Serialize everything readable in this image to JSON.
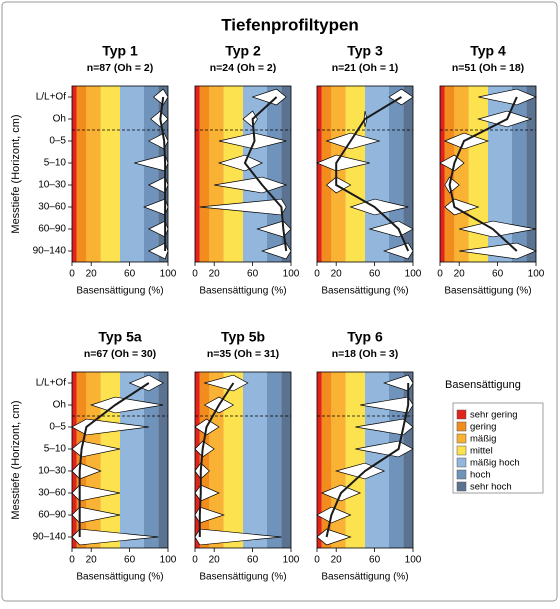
{
  "figure": {
    "title": "Tiefenprofiltypen"
  },
  "legend": {
    "title": "Basensättigung",
    "edges": [
      0,
      5,
      15,
      30,
      50,
      75,
      90,
      100
    ],
    "entries": [
      {
        "label": "sehr gering",
        "color": "#e2231a"
      },
      {
        "label": "gering",
        "color": "#f28c1c"
      },
      {
        "label": "mäßig",
        "color": "#f9b233"
      },
      {
        "label": "mittel",
        "color": "#fde24f"
      },
      {
        "label": "mäßig hoch",
        "color": "#93b7dc"
      },
      {
        "label": "hoch",
        "color": "#6f93bb"
      },
      {
        "label": "sehr hoch",
        "color": "#5b7390"
      }
    ]
  },
  "chart_data": [
    {
      "type": "violin",
      "title": "Typ 1",
      "subtitle": "n=87 (Oh = 2)",
      "ylabel": "Messtiefe (Horizont, cm)",
      "categories": [
        "L/L+Of",
        "Oh",
        "0–5",
        "5–10",
        "10–30",
        "30–60",
        "60–90",
        "90–140"
      ],
      "values": [
        95,
        92,
        96,
        97,
        97,
        97,
        97,
        97
      ],
      "ranges": [
        [
          85,
          100
        ],
        [
          82,
          100
        ],
        [
          80,
          100
        ],
        [
          65,
          100
        ],
        [
          80,
          100
        ],
        [
          75,
          100
        ],
        [
          80,
          100
        ],
        [
          80,
          100
        ]
      ],
      "xlim": [
        0,
        100
      ],
      "xticks": [
        0,
        20,
        60,
        100
      ],
      "xlabel": "Basensättigung (%)"
    },
    {
      "type": "violin",
      "title": "Typ 2",
      "subtitle": "n=24 (Oh = 2)",
      "values": [
        85,
        60,
        62,
        52,
        70,
        90,
        92,
        95
      ],
      "ranges": [
        [
          60,
          95
        ],
        [
          50,
          65
        ],
        [
          25,
          95
        ],
        [
          25,
          70
        ],
        [
          20,
          95
        ],
        [
          5,
          95
        ],
        [
          65,
          100
        ],
        [
          70,
          100
        ]
      ],
      "xlim": [
        0,
        100
      ],
      "xticks": [
        0,
        20,
        60,
        100
      ],
      "xlabel": "Basensättigung (%)"
    },
    {
      "type": "violin",
      "title": "Typ 3",
      "subtitle": "n=21 (Oh = 1)",
      "values": [
        88,
        50,
        35,
        20,
        20,
        60,
        85,
        95
      ],
      "ranges": [
        [
          75,
          100
        ],
        [
          49,
          52
        ],
        [
          10,
          65
        ],
        [
          0,
          55
        ],
        [
          10,
          35
        ],
        [
          35,
          95
        ],
        [
          55,
          100
        ],
        [
          70,
          100
        ]
      ],
      "xlim": [
        0,
        100
      ],
      "xticks": [
        0,
        20,
        60,
        100
      ],
      "xlabel": "Basensättigung (%)"
    },
    {
      "type": "violin",
      "title": "Typ 4",
      "subtitle": "n=51 (Oh = 18)",
      "values": [
        80,
        70,
        25,
        15,
        10,
        15,
        55,
        80
      ],
      "ranges": [
        [
          40,
          100
        ],
        [
          40,
          95
        ],
        [
          5,
          50
        ],
        [
          0,
          25
        ],
        [
          5,
          20
        ],
        [
          5,
          40
        ],
        [
          20,
          100
        ],
        [
          20,
          100
        ]
      ],
      "xlim": [
        0,
        100
      ],
      "xticks": [
        0,
        20,
        60,
        100
      ],
      "xlabel": "Basensättigung (%)"
    },
    {
      "type": "violin",
      "title": "Typ 5a",
      "subtitle": "n=67 (Oh = 30)",
      "ylabel": "Messtiefe (Horizont, cm)",
      "categories": [
        "L/L+Of",
        "Oh",
        "0–5",
        "5–10",
        "10–30",
        "30–60",
        "60–90",
        "90–140"
      ],
      "values": [
        80,
        45,
        15,
        10,
        8,
        8,
        8,
        8
      ],
      "ranges": [
        [
          60,
          95
        ],
        [
          20,
          95
        ],
        [
          0,
          80
        ],
        [
          0,
          50
        ],
        [
          0,
          30
        ],
        [
          0,
          50
        ],
        [
          0,
          50
        ],
        [
          0,
          90
        ]
      ],
      "xlim": [
        0,
        100
      ],
      "xticks": [
        0,
        20,
        60,
        100
      ],
      "xlabel": "Basensättigung (%)"
    },
    {
      "type": "violin",
      "title": "Typ 5b",
      "subtitle": "n=35 (Oh = 31)",
      "values": [
        40,
        25,
        12,
        8,
        6,
        6,
        5,
        5
      ],
      "ranges": [
        [
          10,
          55
        ],
        [
          10,
          40
        ],
        [
          0,
          25
        ],
        [
          0,
          20
        ],
        [
          0,
          15
        ],
        [
          0,
          25
        ],
        [
          0,
          30
        ],
        [
          0,
          90
        ]
      ],
      "xlim": [
        0,
        100
      ],
      "xticks": [
        0,
        20,
        60,
        100
      ],
      "xlabel": "Basensättigung (%)"
    },
    {
      "type": "violin",
      "title": "Typ 6",
      "subtitle": "n=18 (Oh = 3)",
      "values": [
        95,
        95,
        90,
        85,
        50,
        25,
        15,
        10
      ],
      "ranges": [
        [
          70,
          100
        ],
        [
          45,
          100
        ],
        [
          40,
          100
        ],
        [
          40,
          100
        ],
        [
          20,
          70
        ],
        [
          5,
          45
        ],
        [
          0,
          35
        ],
        [
          0,
          35
        ]
      ],
      "xlim": [
        0,
        100
      ],
      "xticks": [
        0,
        20,
        60,
        100
      ],
      "xlabel": "Basensättigung (%)"
    }
  ]
}
